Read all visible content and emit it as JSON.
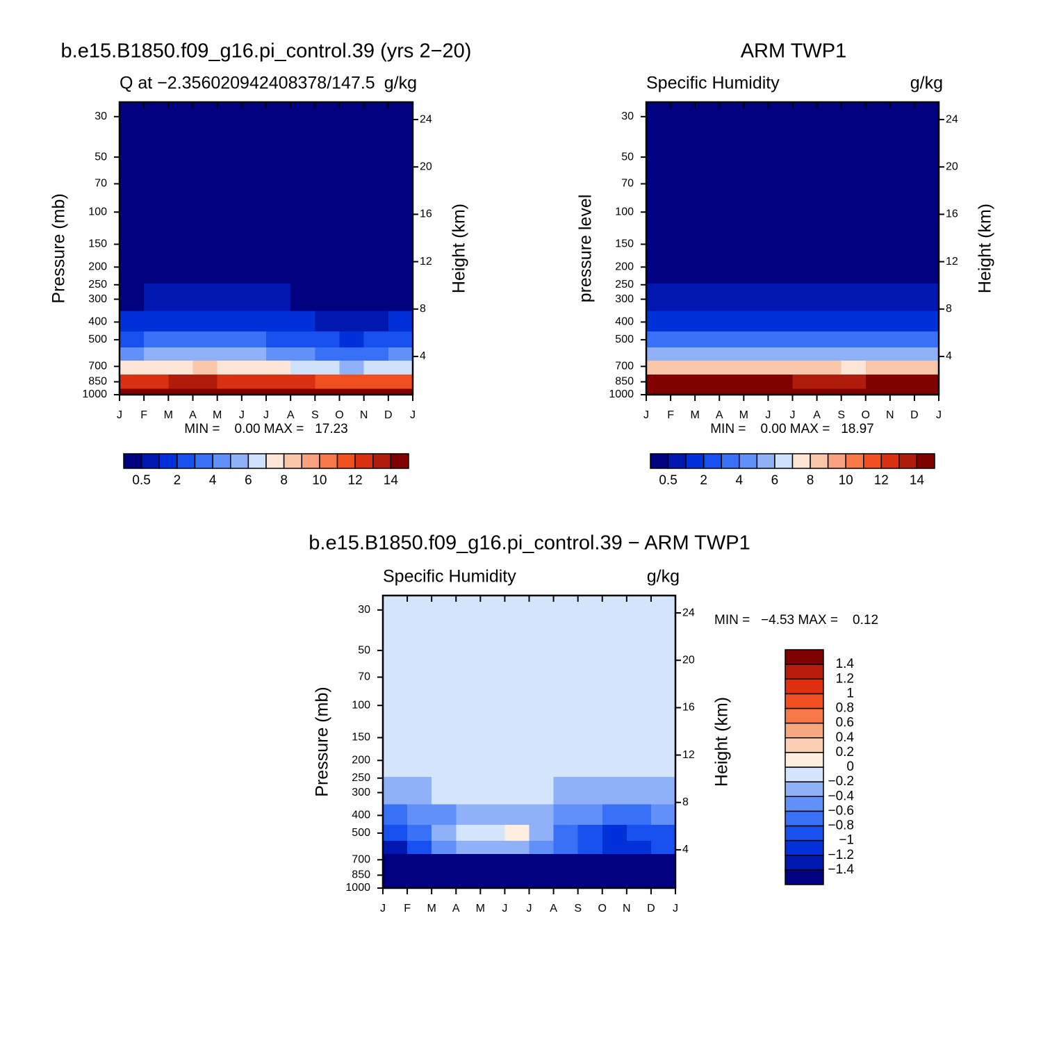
{
  "chart_data": [
    {
      "type": "contour",
      "title": "b.e15.B1850.f09_g16.pi_control.39 (yrs 2−20)",
      "left_title": "Q at −2.356020942408378/147.5",
      "right_title": "g/kg",
      "ylabel": "Pressure (mb)",
      "y2label": "Height (km)",
      "stats": "MIN =    0.00 MAX =   17.23",
      "categories": [
        "J",
        "F",
        "M",
        "A",
        "M",
        "J",
        "J",
        "A",
        "S",
        "O",
        "N",
        "D",
        "J"
      ],
      "ylog": true,
      "ylim": [
        1000,
        25
      ],
      "yticks": [
        1000,
        850,
        700,
        500,
        400,
        300,
        250,
        200,
        150,
        100,
        70,
        50,
        30
      ],
      "y2lim": [
        0.77,
        25.47
      ],
      "y2ticks": [
        4,
        8,
        12,
        16,
        20,
        24
      ],
      "field": {
        "p": [
          1000,
          850,
          700,
          600,
          500,
          400,
          300,
          200,
          100,
          30
        ],
        "values": [
          [
            16.5,
            16.8,
            17.0,
            17.1,
            17.2,
            17.0,
            16.8,
            16.6,
            16.2,
            15.8,
            15.9,
            16.2
          ],
          [
            12.5,
            12.8,
            13.0,
            13.1,
            12.9,
            12.7,
            12.5,
            12.0,
            11.4,
            11.0,
            11.2,
            11.8
          ],
          [
            7.2,
            7.6,
            7.9,
            8.0,
            7.8,
            7.6,
            7.3,
            6.8,
            6.2,
            5.8,
            6.0,
            6.6
          ],
          [
            4.8,
            5.2,
            5.5,
            5.6,
            5.4,
            5.2,
            4.9,
            4.4,
            3.9,
            3.6,
            3.8,
            4.3
          ],
          [
            2.6,
            3.0,
            3.3,
            3.4,
            3.2,
            3.0,
            2.8,
            2.4,
            2.1,
            1.9,
            2.0,
            2.4
          ],
          [
            1.2,
            1.4,
            1.6,
            1.6,
            1.5,
            1.4,
            1.3,
            1.1,
            0.9,
            0.8,
            0.9,
            1.1
          ],
          [
            0.45,
            0.55,
            0.6,
            0.6,
            0.55,
            0.55,
            0.5,
            0.45,
            0.4,
            0.35,
            0.4,
            0.45
          ],
          [
            0.08,
            0.08,
            0.08,
            0.08,
            0.08,
            0.08,
            0.08,
            0.08,
            0.08,
            0.08,
            0.08,
            0.08
          ],
          [
            0.01,
            0.01,
            0.01,
            0.01,
            0.01,
            0.01,
            0.01,
            0.01,
            0.01,
            0.01,
            0.01,
            0.01
          ],
          [
            0.003,
            0.003,
            0.003,
            0.003,
            0.003,
            0.003,
            0.003,
            0.003,
            0.003,
            0.003,
            0.003,
            0.003
          ]
        ]
      },
      "colorbar": {
        "orientation": "horizontal",
        "label_step": 2,
        "levels": [
          0.5,
          1,
          2,
          3,
          4,
          5,
          6,
          7,
          8,
          9,
          10,
          11,
          12,
          13,
          14
        ],
        "colors": [
          "#000080",
          "#0018b0",
          "#0030d8",
          "#1850f0",
          "#3870f8",
          "#6090f8",
          "#90b0f8",
          "#cfe0fa",
          "#fde6d6",
          "#f9c6aa",
          "#f8a080",
          "#f87848",
          "#f05020",
          "#d83010",
          "#b01c0c",
          "#800000"
        ]
      }
    },
    {
      "type": "contour",
      "title": "ARM TWP1",
      "left_title": "Specific Humidity",
      "right_title": "g/kg",
      "ylabel": "pressure level",
      "y2label": "Height (km)",
      "stats": "MIN =    0.00 MAX =   18.97",
      "categories": [
        "J",
        "F",
        "M",
        "A",
        "M",
        "J",
        "J",
        "A",
        "S",
        "O",
        "N",
        "D",
        "J"
      ],
      "ylog": true,
      "ylim": [
        1000,
        25
      ],
      "yticks": [
        1000,
        850,
        700,
        500,
        400,
        300,
        250,
        200,
        150,
        100,
        70,
        50,
        30
      ],
      "y2lim": [
        0.77,
        25.47
      ],
      "y2ticks": [
        4,
        8,
        12,
        16,
        20,
        24
      ],
      "field": {
        "p": [
          1000,
          850,
          700,
          600,
          500,
          400,
          300,
          200,
          100,
          30
        ],
        "values": [
          [
            18.5,
            18.6,
            18.8,
            18.9,
            18.9,
            18.8,
            18.7,
            18.7,
            18.6,
            18.6,
            18.7,
            18.6
          ],
          [
            14.0,
            14.2,
            14.5,
            14.4,
            14.2,
            14.0,
            13.9,
            13.9,
            13.8,
            14.0,
            14.2,
            14.1
          ],
          [
            8.2,
            8.4,
            8.6,
            8.5,
            8.3,
            8.1,
            8.0,
            8.0,
            7.9,
            8.1,
            8.3,
            8.2
          ],
          [
            5.6,
            5.8,
            5.9,
            5.8,
            5.6,
            5.4,
            5.3,
            5.3,
            5.2,
            5.4,
            5.6,
            5.5
          ],
          [
            3.4,
            3.5,
            3.6,
            3.5,
            3.4,
            3.3,
            3.2,
            3.2,
            3.1,
            3.3,
            3.4,
            3.3
          ],
          [
            1.8,
            1.9,
            1.9,
            1.9,
            1.8,
            1.8,
            1.7,
            1.7,
            1.7,
            1.8,
            1.8,
            1.8
          ],
          [
            0.75,
            0.8,
            0.8,
            0.75,
            0.7,
            0.7,
            0.7,
            0.7,
            0.7,
            0.7,
            0.75,
            0.7
          ],
          [
            0.12,
            0.12,
            0.12,
            0.12,
            0.12,
            0.12,
            0.12,
            0.12,
            0.12,
            0.12,
            0.12,
            0.12
          ],
          [
            0.01,
            0.01,
            0.01,
            0.01,
            0.01,
            0.01,
            0.01,
            0.01,
            0.01,
            0.01,
            0.01,
            0.01
          ],
          [
            0.003,
            0.003,
            0.003,
            0.003,
            0.003,
            0.003,
            0.003,
            0.003,
            0.003,
            0.003,
            0.003,
            0.003
          ]
        ]
      },
      "colorbar": {
        "orientation": "horizontal",
        "label_step": 2,
        "levels": [
          0.5,
          1,
          2,
          3,
          4,
          5,
          6,
          7,
          8,
          9,
          10,
          11,
          12,
          13,
          14
        ],
        "colors": [
          "#000080",
          "#0018b0",
          "#0030d8",
          "#1850f0",
          "#3870f8",
          "#6090f8",
          "#90b0f8",
          "#cfe0fa",
          "#fde6d6",
          "#f9c6aa",
          "#f8a080",
          "#f87848",
          "#f05020",
          "#d83010",
          "#b01c0c",
          "#800000"
        ]
      }
    },
    {
      "type": "contour",
      "title": "b.e15.B1850.f09_g16.pi_control.39 − ARM TWP1",
      "left_title": "Specific Humidity",
      "right_title": "g/kg",
      "ylabel": "Pressure (mb)",
      "y2label": "Height (km)",
      "stats": "MIN =   −4.53 MAX =    0.12",
      "categories": [
        "J",
        "F",
        "M",
        "A",
        "M",
        "J",
        "J",
        "A",
        "S",
        "O",
        "N",
        "D",
        "J"
      ],
      "ylog": true,
      "ylim": [
        1000,
        25
      ],
      "yticks": [
        1000,
        850,
        700,
        500,
        400,
        300,
        250,
        200,
        150,
        100,
        70,
        50,
        30
      ],
      "y2lim": [
        0.77,
        25.47
      ],
      "y2ticks": [
        4,
        8,
        12,
        16,
        20,
        24
      ],
      "field": {
        "p": [
          1000,
          850,
          700,
          600,
          500,
          400,
          300,
          200,
          100,
          30
        ],
        "values": [
          [
            -2.0,
            -1.8,
            -1.8,
            -1.8,
            -1.7,
            -1.8,
            -1.9,
            -1.9,
            -2.4,
            -2.8,
            -2.8,
            -2.4
          ],
          [
            -2.0,
            -1.8,
            -1.8,
            -1.7,
            -1.7,
            -1.8,
            -1.8,
            -1.8,
            -2.4,
            -3.0,
            -3.0,
            -2.3
          ],
          [
            -1.7,
            -1.5,
            -1.5,
            -1.6,
            -1.6,
            -1.5,
            -1.5,
            -1.6,
            -1.8,
            -2.0,
            -1.9,
            -1.7
          ],
          [
            -1.3,
            -1.0,
            -0.6,
            -0.4,
            -0.3,
            -0.3,
            -0.6,
            -0.8,
            -1.0,
            -1.2,
            -1.1,
            -1.0
          ],
          [
            -1.0,
            -0.8,
            -0.4,
            -0.1,
            -0.05,
            0.1,
            -0.4,
            -0.8,
            -0.9,
            -1.1,
            -1.0,
            -0.9
          ],
          [
            -0.7,
            -0.6,
            -0.5,
            -0.4,
            -0.3,
            -0.3,
            -0.4,
            -0.5,
            -0.6,
            -0.7,
            -0.7,
            -0.6
          ],
          [
            -0.3,
            -0.25,
            -0.2,
            -0.2,
            -0.2,
            -0.2,
            -0.2,
            -0.25,
            -0.3,
            -0.35,
            -0.3,
            -0.3
          ],
          [
            -0.05,
            -0.05,
            -0.05,
            -0.05,
            -0.05,
            -0.05,
            -0.05,
            -0.05,
            -0.05,
            -0.05,
            -0.05,
            -0.05
          ],
          [
            -0.03,
            -0.03,
            -0.03,
            -0.03,
            -0.03,
            -0.03,
            -0.03,
            -0.03,
            -0.03,
            -0.03,
            -0.03,
            -0.03
          ],
          [
            -0.01,
            -0.01,
            -0.01,
            -0.01,
            -0.01,
            -0.01,
            -0.01,
            -0.01,
            -0.01,
            -0.01,
            -0.01,
            -0.01
          ]
        ]
      },
      "colorbar": {
        "orientation": "vertical",
        "label_step": 1,
        "levels": [
          {
            "value": -1.4,
            "label": "−1.4"
          },
          {
            "value": -1.2,
            "label": "−1.2"
          },
          {
            "value": -1,
            "label": "−1"
          },
          {
            "value": -0.8,
            "label": "−0.8"
          },
          {
            "value": -0.6,
            "label": "−0.6"
          },
          {
            "value": -0.4,
            "label": "−0.4"
          },
          {
            "value": -0.2,
            "label": "−0.2"
          },
          0,
          0.2,
          0.4,
          0.6,
          0.8,
          1,
          1.2,
          1.4
        ],
        "colors": [
          "#000080",
          "#0018b0",
          "#0030d8",
          "#1850f0",
          "#3870f8",
          "#6090f8",
          "#90b0f8",
          "#d4e4fa",
          "#fdeee0",
          "#fcd0b4",
          "#f8a880",
          "#f87848",
          "#f05020",
          "#e03010",
          "#b81c0c",
          "#800000"
        ]
      }
    }
  ]
}
